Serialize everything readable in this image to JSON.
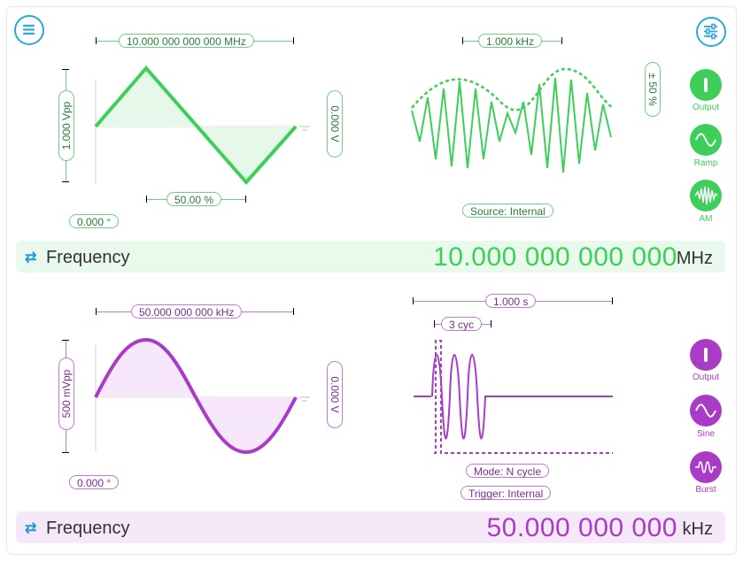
{
  "colors": {
    "ch1": "#3ecf5a",
    "ch2": "#a93cc7",
    "accent": "#2aa8e0"
  },
  "icons": {
    "menu": "menu-icon",
    "settings": "sliders-icon",
    "swap": "swap-arrows-icon"
  },
  "ch1": {
    "frequency_pill": "10.000 000 000 000 MHz",
    "amplitude_pill": "1.000 Vpp",
    "offset_pill": "0.000 V",
    "symmetry_pill": "50.00 %",
    "phase_pill": "0.000 °",
    "mod_freq_pill": "1.000 kHz",
    "mod_depth_pill": "± 50 %",
    "source_pill": "Source: Internal",
    "buttons": {
      "output": "Output",
      "waveform": "Ramp",
      "mode": "AM"
    },
    "bar": {
      "label": "Frequency",
      "value": "10.000 000 000 000",
      "unit": "MHz"
    }
  },
  "ch2": {
    "frequency_pill": "50.000 000 000 kHz",
    "amplitude_pill": "500 mVpp",
    "offset_pill": "0.000 V",
    "phase_pill": "0.000 °",
    "period_pill": "1.000 s",
    "cycles_pill": "3 cyc",
    "mode_pill": "Mode: N cycle",
    "trigger_pill": "Trigger: Internal",
    "buttons": {
      "output": "Output",
      "waveform": "Sine",
      "mode": "Burst"
    },
    "bar": {
      "label": "Frequency",
      "value": "50.000 000 000",
      "unit": "kHz"
    }
  }
}
